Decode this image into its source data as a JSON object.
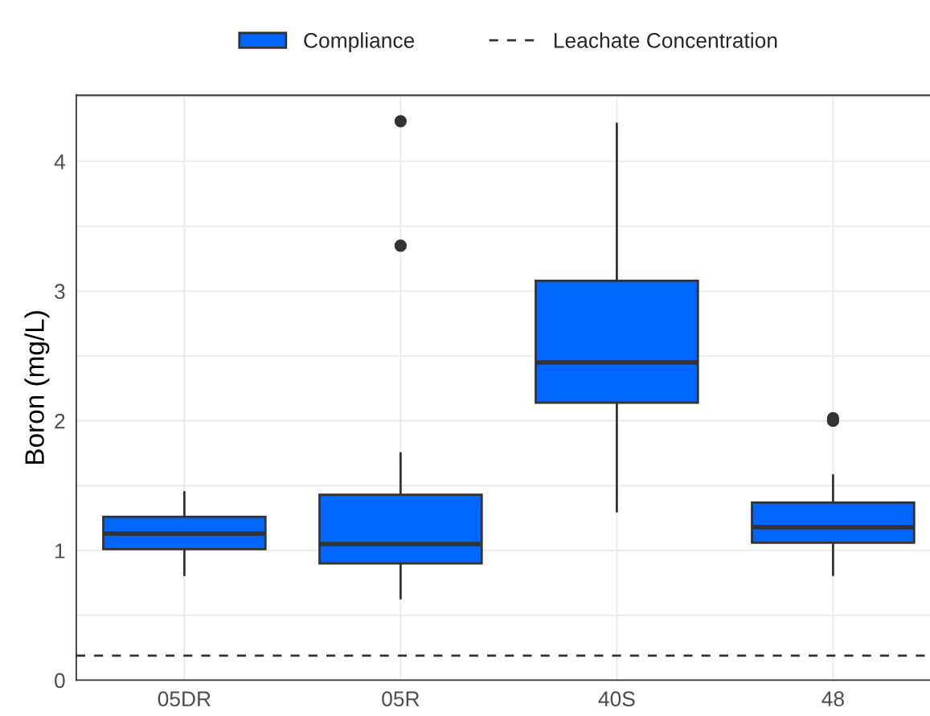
{
  "chart_data": {
    "type": "box",
    "categories": [
      "05DR",
      "05R",
      "40S",
      "48"
    ],
    "ylabel": "Boron (mg/L)",
    "ylim": [
      0,
      4.51
    ],
    "yticks": [
      0,
      1,
      2,
      3,
      4
    ],
    "grid": true,
    "legend": "top",
    "series": [
      {
        "name": "Compliance",
        "color": "#0066ff",
        "boxes": [
          {
            "low": 0.81,
            "q1": 1.01,
            "median": 1.13,
            "q3": 1.26,
            "high": 1.45
          },
          {
            "low": 0.63,
            "q1": 0.9,
            "median": 1.05,
            "q3": 1.43,
            "high": 1.75,
            "outliers": [
              3.35,
              4.31
            ]
          },
          {
            "low": 1.3,
            "q1": 2.14,
            "median": 2.45,
            "q3": 3.08,
            "high": 4.29
          },
          {
            "low": 0.81,
            "q1": 1.06,
            "median": 1.18,
            "q3": 1.37,
            "high": 1.58,
            "outliers": [
              2.0,
              2.02
            ]
          }
        ]
      }
    ],
    "ref_lines": [
      {
        "axis": "y",
        "value": 0.19,
        "label": "Leachate Concentration",
        "color": "#333333",
        "line_style": "dashed"
      }
    ]
  }
}
